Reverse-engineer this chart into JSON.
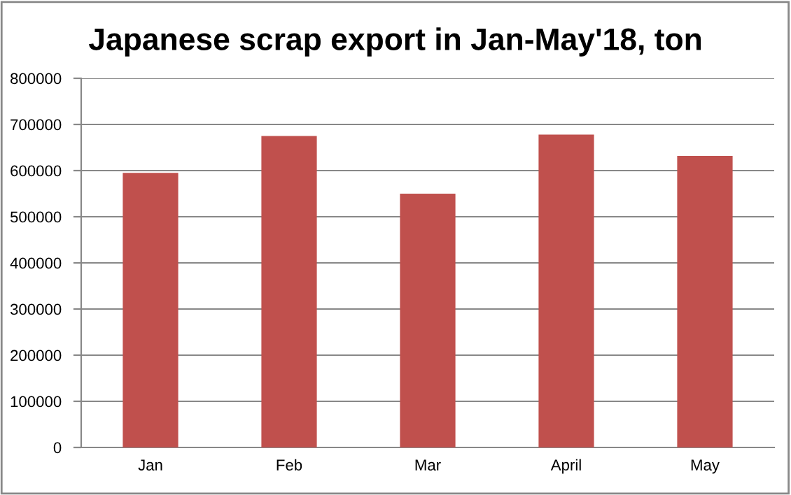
{
  "chart_data": {
    "type": "bar",
    "title": "Japanese scrap export in Jan-May'18, ton",
    "categories": [
      "Jan",
      "Feb",
      "Mar",
      "April",
      "May"
    ],
    "values": [
      595000,
      675000,
      550000,
      678000,
      632000
    ],
    "color": "#c0504d",
    "ylim": [
      0,
      800000
    ],
    "yticks": [
      0,
      100000,
      200000,
      300000,
      400000,
      500000,
      600000,
      700000,
      800000
    ],
    "grid": "y",
    "legend": false
  }
}
